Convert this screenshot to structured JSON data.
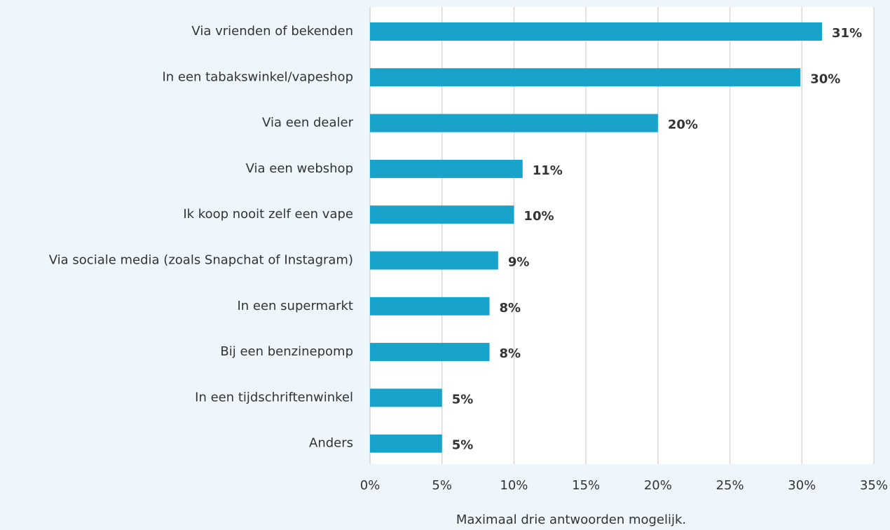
{
  "chart_data": {
    "type": "bar",
    "orientation": "horizontal",
    "x_label": "Maximaal drie antwoorden mogelijk.",
    "categories": [
      "Via vrienden of bekenden",
      "In een tabakswinkel/vapeshop",
      "Via een dealer",
      "Via een webshop",
      "Ik koop nooit zelf een vape",
      "Via sociale media (zoals Snapchat of Instagram)",
      "In een supermarkt",
      "Bij een benzinepomp",
      "In een tijdschriftenwinkel",
      "Anders"
    ],
    "values": [
      31.4,
      29.9,
      20,
      10.6,
      10,
      8.9,
      8.3,
      8.3,
      5,
      5
    ],
    "value_labels": [
      "31%",
      "30%",
      "20%",
      "11%",
      "10%",
      "9%",
      "8%",
      "8%",
      "5%",
      "5%"
    ],
    "color": "#17a3ca",
    "xlim": [
      0,
      35
    ],
    "xticks": [
      {
        "value": 0,
        "label": "0%"
      },
      {
        "value": 5,
        "label": "5%"
      },
      {
        "value": 10,
        "label": "10%"
      },
      {
        "value": 15,
        "label": "15%"
      },
      {
        "value": 20,
        "label": "20%"
      },
      {
        "value": 25,
        "label": "25%"
      },
      {
        "value": 30,
        "label": "30%"
      },
      {
        "value": 35,
        "label": "35%"
      }
    ],
    "grid": true
  }
}
